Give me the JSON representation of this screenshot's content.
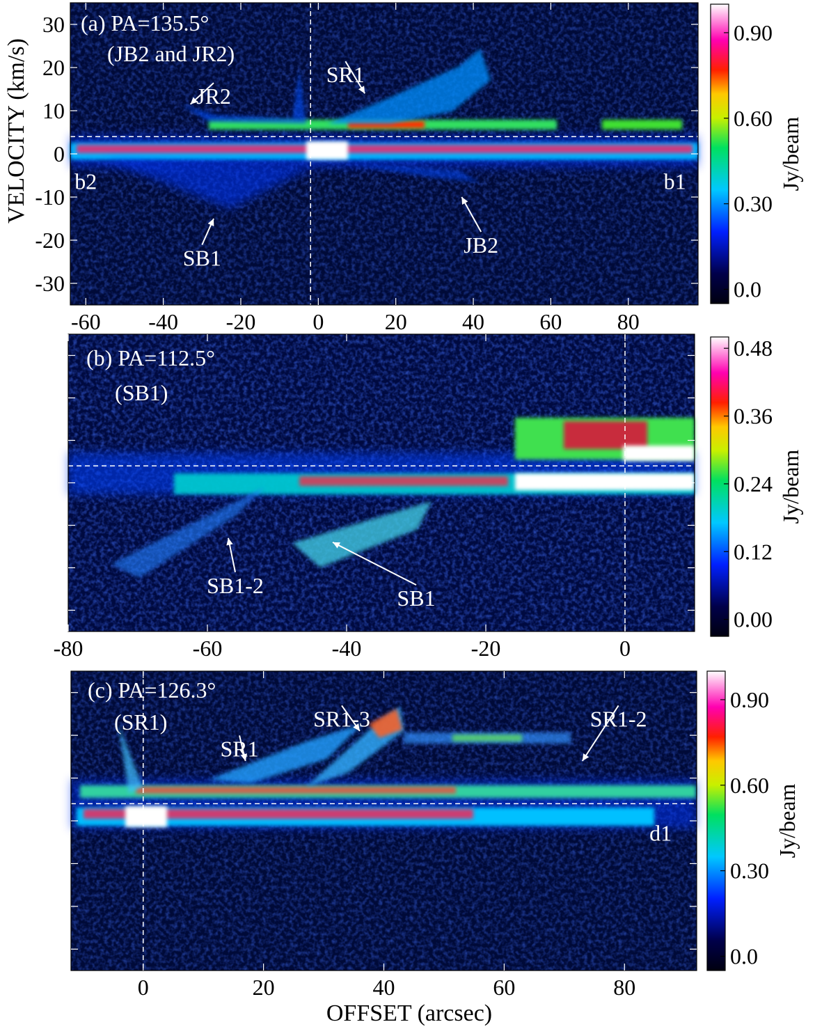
{
  "figure": {
    "xlabel": "OFFSET (arcsec)",
    "ylabel": "VELOCITY (km/s)"
  },
  "chart_data": [
    {
      "type": "heatmap",
      "panel": "a",
      "title": "(a) PA=135.5°",
      "subtitle": "(JB2 and JR2)",
      "xlabel": "",
      "ylabel": "VELOCITY (km/s)",
      "xlim": [
        -64,
        98
      ],
      "ylim": [
        -35,
        35
      ],
      "x_ticks": [
        -60,
        -40,
        -20,
        0,
        20,
        40,
        60,
        80
      ],
      "x_tick_labels": [
        "-60",
        "-40",
        "-20",
        "0",
        "20",
        "40",
        "60",
        "80"
      ],
      "y_ticks": [
        -30,
        -20,
        -10,
        0,
        10,
        20,
        30
      ],
      "y_tick_labels": [
        "-30",
        "-20",
        "-10",
        "0",
        "10",
        "20",
        "30"
      ],
      "guides": {
        "x_offset": -2,
        "y_velocity": 4
      },
      "colorbar": {
        "label": "Jy/beam",
        "min": -0.05,
        "max": 1.0,
        "ticks": [
          0.0,
          0.3,
          0.6,
          0.9
        ],
        "tick_labels": [
          "0.0",
          "0.30",
          "0.60",
          "0.90"
        ]
      },
      "annotations": [
        {
          "text": "JR2",
          "x": -27,
          "y": 14.5,
          "arrow_to": [
            -33,
            11.5
          ]
        },
        {
          "text": "SR1",
          "x": 7,
          "y": 19.5,
          "arrow_to": [
            12,
            14
          ]
        },
        {
          "text": "SB1",
          "x": -30,
          "y": -23,
          "arrow_to": [
            -27,
            -15
          ]
        },
        {
          "text": "JB2",
          "x": 42,
          "y": -20,
          "arrow_to": [
            37,
            -10
          ]
        },
        {
          "text": "b2",
          "x": -60,
          "y": -6.5
        },
        {
          "text": "b1",
          "x": 92,
          "y": -6.5
        }
      ]
    },
    {
      "type": "heatmap",
      "panel": "b",
      "title": "(b) PA=112.5°",
      "subtitle": "(SB1)",
      "xlabel": "",
      "ylabel": "",
      "xlim": [
        -80,
        10
      ],
      "ylim": [
        -35,
        35
      ],
      "x_ticks": [
        -80,
        -60,
        -40,
        -20,
        0
      ],
      "x_tick_labels": [
        "-80",
        "-60",
        "-40",
        "-20",
        "0"
      ],
      "guides": {
        "x_offset": 0,
        "y_velocity": 4
      },
      "colorbar": {
        "label": "Jy/beam",
        "min": -0.03,
        "max": 0.5,
        "ticks": [
          0.0,
          0.12,
          0.24,
          0.36,
          0.48
        ],
        "tick_labels": [
          "0.00",
          "0.12",
          "0.24",
          "0.36",
          "0.48"
        ]
      },
      "annotations": [
        {
          "text": "SB1-2",
          "x": -56,
          "y": -23,
          "arrow_to": [
            -57,
            -13
          ]
        },
        {
          "text": "SB1",
          "x": -30,
          "y": -26,
          "arrow_to": [
            -42,
            -14
          ]
        }
      ]
    },
    {
      "type": "heatmap",
      "panel": "c",
      "title": "(c) PA=126.3°",
      "subtitle": "(SR1)",
      "xlabel": "OFFSET (arcsec)",
      "ylabel": "",
      "xlim": [
        -12,
        92
      ],
      "ylim": [
        -35,
        35
      ],
      "x_ticks": [
        0,
        20,
        40,
        60,
        80
      ],
      "x_tick_labels": [
        "0",
        "20",
        "40",
        "60",
        "80"
      ],
      "guides": {
        "x_offset": 0,
        "y_velocity": 4
      },
      "colorbar": {
        "label": "Jy/beam",
        "min": -0.05,
        "max": 1.0,
        "ticks": [
          0.0,
          0.3,
          0.6,
          0.9
        ],
        "tick_labels": [
          "0.0",
          "0.30",
          "0.60",
          "0.90"
        ]
      },
      "annotations": [
        {
          "text": "SR1",
          "x": 16,
          "y": 18,
          "arrow_to": [
            17,
            14
          ]
        },
        {
          "text": "SR1-3",
          "x": 33,
          "y": 25,
          "arrow_to": [
            36,
            21
          ]
        },
        {
          "text": "SR1-2",
          "x": 79,
          "y": 25,
          "arrow_to": [
            73,
            14
          ]
        },
        {
          "text": "d1",
          "x": 86,
          "y": -3
        }
      ]
    }
  ]
}
